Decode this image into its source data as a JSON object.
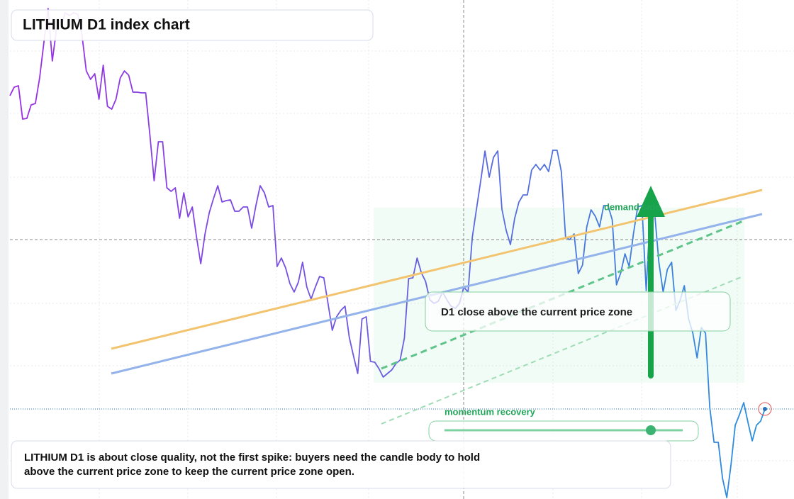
{
  "chart_data": {
    "type": "line",
    "title": "LITHIUM D1 index chart",
    "annotations": {
      "zone": "demand side",
      "condition": "D1 close above the current price zone",
      "momentum": "momentum recovery"
    },
    "caption": "LITHIUM D1 is about close quality, not the first spike: buyers need the candle body to hold above the current price zone to keep the current price zone open.",
    "colors": [
      "#9b2ee6",
      "#6a5ce0",
      "#2a90dc"
    ],
    "ylim": [
      0,
      704
    ],
    "values": [
      569,
      581,
      583,
      536,
      537,
      556,
      558,
      594,
      644,
      692,
      618,
      664,
      664,
      686,
      682,
      686,
      684,
      654,
      604,
      592,
      600,
      564,
      612,
      554,
      550,
      564,
      594,
      604,
      598,
      574,
      574,
      573,
      573,
      514,
      449,
      504,
      504,
      439,
      434,
      439,
      396,
      432,
      398,
      412,
      369,
      332,
      374,
      404,
      424,
      442,
      419,
      421,
      422,
      406,
      406,
      412,
      412,
      382,
      414,
      442,
      432,
      412,
      414,
      328,
      340,
      326,
      304,
      292,
      306,
      334,
      299,
      282,
      299,
      314,
      312,
      276,
      238,
      257,
      266,
      272,
      228,
      202,
      177,
      254,
      257,
      194,
      193,
      184,
      172,
      177,
      182,
      191,
      196,
      227,
      311,
      312,
      340,
      319,
      307,
      281,
      276,
      279,
      292,
      281,
      272,
      269,
      276,
      299,
      292,
      369,
      409,
      449,
      491,
      454,
      482,
      491,
      409,
      379,
      359,
      396,
      419,
      429,
      429,
      464,
      472,
      464,
      472,
      462,
      492,
      492,
      462,
      369,
      366,
      374,
      318,
      330,
      384,
      408,
      399,
      384,
      414,
      414,
      394,
      302,
      319,
      346,
      328,
      374,
      412,
      414,
      294,
      410,
      404,
      334,
      292,
      324,
      334,
      266,
      280,
      301,
      254,
      234,
      199,
      242,
      234,
      129,
      80,
      80,
      29,
      2,
      48,
      104,
      119,
      136,
      108,
      82,
      104,
      110,
      127
    ]
  }
}
